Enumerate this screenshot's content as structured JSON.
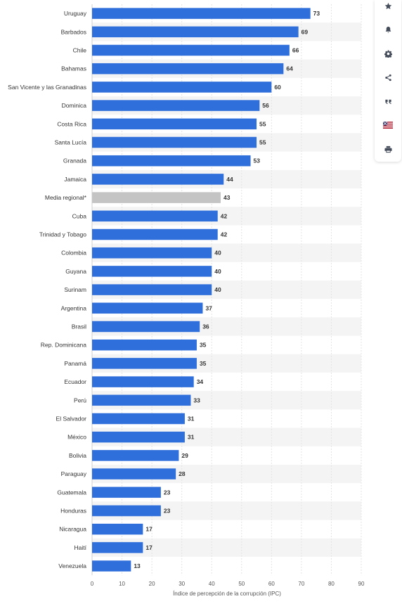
{
  "chart_data": {
    "type": "bar",
    "orientation": "horizontal",
    "categories": [
      "Uruguay",
      "Barbados",
      "Chile",
      "Bahamas",
      "San Vicente y las Granadinas",
      "Dominica",
      "Costa Rica",
      "Santa Lucía",
      "Granada",
      "Jamaica",
      "Media regional*",
      "Cuba",
      "Trinidad y Tobago",
      "Colombia",
      "Guyana",
      "Surinam",
      "Argentina",
      "Brasil",
      "Rep. Dominicana",
      "Panamá",
      "Ecuador",
      "Perú",
      "El Salvador",
      "México",
      "Bolivia",
      "Paraguay",
      "Guatemala",
      "Honduras",
      "Nicaragua",
      "Haití",
      "Venezuela"
    ],
    "values": [
      73,
      69,
      66,
      64,
      60,
      56,
      55,
      55,
      53,
      44,
      43,
      42,
      42,
      40,
      40,
      40,
      37,
      36,
      35,
      35,
      34,
      33,
      31,
      31,
      29,
      28,
      23,
      23,
      17,
      17,
      13
    ],
    "highlight_category": "Media regional*",
    "xlabel": "Índice de percepción de la corrupción (IPC)",
    "xlim": [
      0,
      90
    ],
    "xticks": [
      0,
      10,
      20,
      30,
      40,
      50,
      60,
      70,
      80,
      90
    ],
    "grid": true,
    "bar_color": "#2f6fdb",
    "highlight_color": "#c4c4c4",
    "stripe_color": "#f4f4f4"
  },
  "toolbar": {
    "buttons": [
      {
        "name": "favorite-button",
        "icon": "star-icon"
      },
      {
        "name": "notification-button",
        "icon": "bell-icon"
      },
      {
        "name": "settings-button",
        "icon": "gear-icon"
      },
      {
        "name": "share-button",
        "icon": "share-icon"
      },
      {
        "name": "cite-button",
        "icon": "quote-icon"
      },
      {
        "name": "language-button",
        "icon": "flag-icon"
      },
      {
        "name": "print-button",
        "icon": "printer-icon"
      }
    ]
  }
}
